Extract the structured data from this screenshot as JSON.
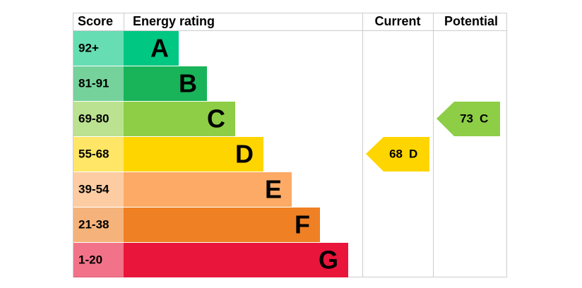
{
  "header": {
    "score": "Score",
    "rating": "Energy rating",
    "current": "Current",
    "potential": "Potential"
  },
  "bands": [
    {
      "score": "92+",
      "letter": "A",
      "color": "#00c781"
    },
    {
      "score": "81-91",
      "letter": "B",
      "color": "#19b459"
    },
    {
      "score": "69-80",
      "letter": "C",
      "color": "#8dce46"
    },
    {
      "score": "55-68",
      "letter": "D",
      "color": "#ffd500"
    },
    {
      "score": "39-54",
      "letter": "E",
      "color": "#fcaa65"
    },
    {
      "score": "21-38",
      "letter": "F",
      "color": "#ef8023"
    },
    {
      "score": "1-20",
      "letter": "G",
      "color": "#e9153b"
    }
  ],
  "current": {
    "value": "68",
    "letter": "D"
  },
  "potential": {
    "value": "73",
    "letter": "C"
  }
}
